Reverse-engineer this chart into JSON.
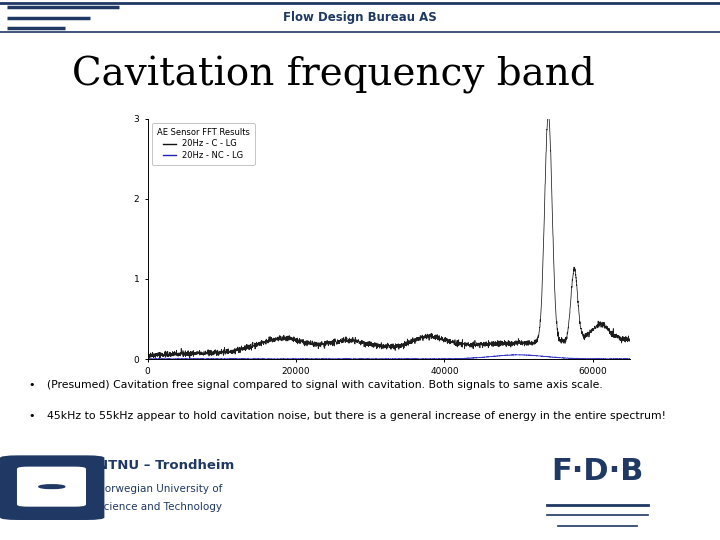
{
  "title": "Cavitation frequency band",
  "header_text": "Flow Design Bureau AS",
  "bullet1": "(Presumed) Cavitation free signal compared to signal with cavitation. Both signals to same axis scale.",
  "bullet2": "45kHz to 55kHz appear to hold cavitation noise, but there is a general increase of energy in the entire spectrum!",
  "legend_title": "AE Sensor FFT Results",
  "legend_line1": "20Hz - C - LG",
  "legend_line2": "20Hz - NC - LG",
  "x_ticks": [
    0,
    20000,
    40000,
    60000
  ],
  "x_tick_labels": [
    "0",
    "20000",
    "40000",
    "60000"
  ],
  "y_ticks": [
    0,
    1,
    2,
    3
  ],
  "y_tick_labels": [
    "0",
    "1",
    "2",
    "3"
  ],
  "background_color": "#ffffff",
  "header_color": "#1f3864",
  "title_color": "#000000",
  "cavitation_color": "#111111",
  "free_color": "#2222bb",
  "accent_color": "#1f3864",
  "fig_width": 7.2,
  "fig_height": 5.4,
  "dpi": 100
}
